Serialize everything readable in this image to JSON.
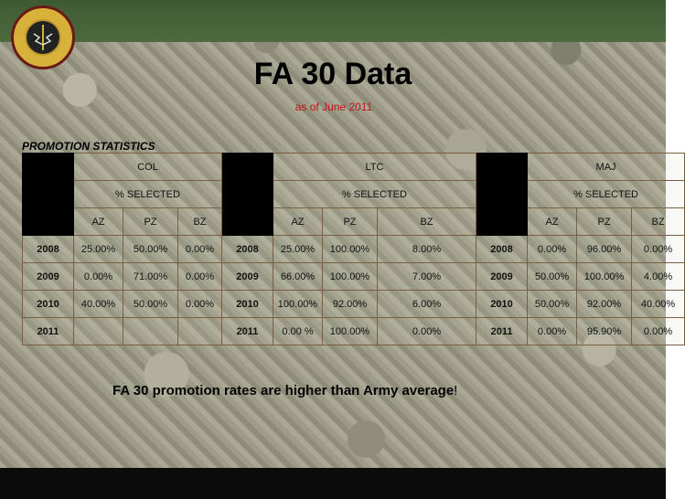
{
  "slide": {
    "title": "FA 30 Data",
    "subtitle": "as of June 2011",
    "section_label": "PROMOTION STATISTICS",
    "logo_text": "THE POWER OF INFORMATION USAIPO",
    "note_main": "FA 30 promotion rates are higher than Army average",
    "note_punct": "!"
  },
  "table": {
    "groups": [
      "COL",
      "LTC",
      "MAJ"
    ],
    "selected_label": "% SELECTED",
    "subheaders": [
      "AZ",
      "PZ",
      "BZ"
    ],
    "rows": [
      {
        "col": {
          "year": "2008",
          "az": "25.00%",
          "pz": "50.00%",
          "bz": "0.00%"
        },
        "ltc": {
          "year": "2008",
          "az": "25.00%",
          "pz": "100.00%",
          "bz": "8.00%"
        },
        "maj": {
          "year": "2008",
          "az": "0.00%",
          "pz": "96.00%",
          "bz": "0.00%"
        }
      },
      {
        "col": {
          "year": "2009",
          "az": "0.00%",
          "pz": "71.00%",
          "bz": "0.00%"
        },
        "ltc": {
          "year": "2009",
          "az": "66.00%",
          "pz": "100.00%",
          "bz": "7.00%"
        },
        "maj": {
          "year": "2009",
          "az": "50.00%",
          "pz": "100.00%",
          "bz": "4.00%"
        }
      },
      {
        "col": {
          "year": "2010",
          "az": "40.00%",
          "pz": "50.00%",
          "bz": "0.00%"
        },
        "ltc": {
          "year": "2010",
          "az": "100.00%",
          "pz": "92.00%",
          "bz": "6.00%"
        },
        "maj": {
          "year": "2010",
          "az": "50.00%",
          "pz": "92.00%",
          "bz": "40.00%"
        }
      },
      {
        "col": {
          "year": "2011",
          "az": "",
          "pz": "",
          "bz": ""
        },
        "ltc": {
          "year": "2011",
          "az": "0.00 %",
          "pz": "100.00%",
          "bz": "0.00%"
        },
        "maj": {
          "year": "2011",
          "az": "0.00%",
          "pz": "95.90%",
          "bz": "0.00%"
        }
      }
    ]
  }
}
